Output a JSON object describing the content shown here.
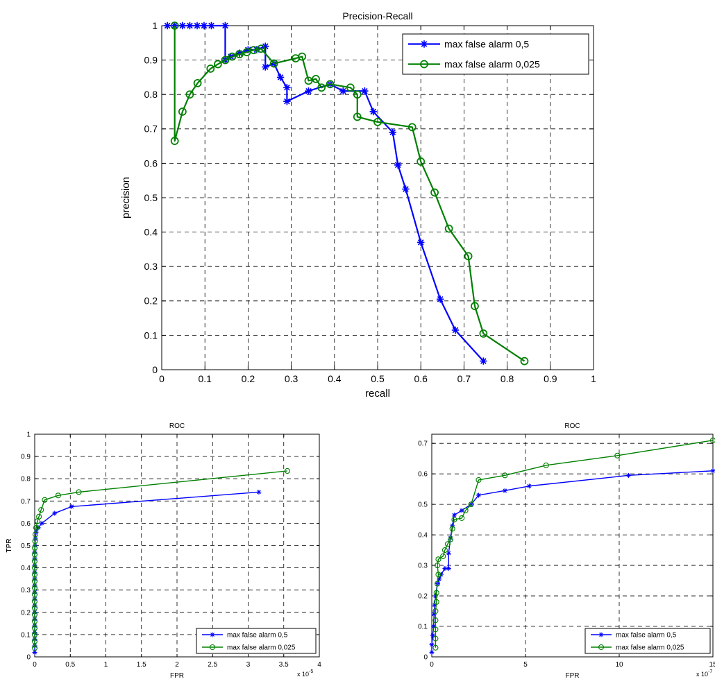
{
  "chart_data": [
    {
      "type": "line",
      "title": "Precision-Recall",
      "xlabel": "recall",
      "ylabel": "precision",
      "xlim": [
        0,
        1
      ],
      "ylim": [
        0,
        1
      ],
      "xticks": [
        "0",
        "0.1",
        "0.2",
        "0.3",
        "0.4",
        "0.5",
        "0.6",
        "0.7",
        "0.8",
        "0.9",
        "1"
      ],
      "yticks": [
        "0",
        "0.1",
        "0.2",
        "0.3",
        "0.4",
        "0.5",
        "0.6",
        "0.7",
        "0.8",
        "0.9",
        "1"
      ],
      "grid": true,
      "legend_position": "top-right",
      "series": [
        {
          "name": "max false alarm 0,5",
          "color": "#0000ff",
          "marker": "star",
          "points": [
            [
              0.013,
              1.0
            ],
            [
              0.03,
              1.0
            ],
            [
              0.048,
              1.0
            ],
            [
              0.065,
              1.0
            ],
            [
              0.082,
              1.0
            ],
            [
              0.098,
              1.0
            ],
            [
              0.115,
              1.0
            ],
            [
              0.147,
              1.0
            ],
            [
              0.147,
              0.9
            ],
            [
              0.16,
              0.91
            ],
            [
              0.18,
              0.92
            ],
            [
              0.2,
              0.93
            ],
            [
              0.22,
              0.93
            ],
            [
              0.24,
              0.94
            ],
            [
              0.24,
              0.88
            ],
            [
              0.26,
              0.89
            ],
            [
              0.275,
              0.85
            ],
            [
              0.29,
              0.82
            ],
            [
              0.29,
              0.78
            ],
            [
              0.34,
              0.81
            ],
            [
              0.39,
              0.83
            ],
            [
              0.42,
              0.81
            ],
            [
              0.47,
              0.81
            ],
            [
              0.49,
              0.75
            ],
            [
              0.535,
              0.69
            ],
            [
              0.547,
              0.595
            ],
            [
              0.565,
              0.525
            ],
            [
              0.6,
              0.37
            ],
            [
              0.645,
              0.205
            ],
            [
              0.68,
              0.115
            ],
            [
              0.745,
              0.025
            ]
          ]
        },
        {
          "name": "max false alarm 0,025",
          "color": "#008000",
          "marker": "circle",
          "points": [
            [
              0.03,
              1.0
            ],
            [
              0.03,
              0.665
            ],
            [
              0.048,
              0.75
            ],
            [
              0.065,
              0.8
            ],
            [
              0.083,
              0.833
            ],
            [
              0.113,
              0.875
            ],
            [
              0.13,
              0.888
            ],
            [
              0.147,
              0.9
            ],
            [
              0.163,
              0.91
            ],
            [
              0.18,
              0.917
            ],
            [
              0.197,
              0.923
            ],
            [
              0.213,
              0.929
            ],
            [
              0.23,
              0.933
            ],
            [
              0.26,
              0.89
            ],
            [
              0.31,
              0.905
            ],
            [
              0.325,
              0.91
            ],
            [
              0.34,
              0.84
            ],
            [
              0.357,
              0.845
            ],
            [
              0.37,
              0.82
            ],
            [
              0.39,
              0.83
            ],
            [
              0.437,
              0.82
            ],
            [
              0.453,
              0.8
            ],
            [
              0.453,
              0.735
            ],
            [
              0.5,
              0.72
            ],
            [
              0.58,
              0.705
            ],
            [
              0.6,
              0.605
            ],
            [
              0.632,
              0.515
            ],
            [
              0.665,
              0.41
            ],
            [
              0.71,
              0.33
            ],
            [
              0.725,
              0.185
            ],
            [
              0.745,
              0.105
            ],
            [
              0.84,
              0.025
            ]
          ]
        }
      ]
    },
    {
      "type": "line",
      "title": "ROC",
      "xlabel": "FPR",
      "ylabel": "TPR",
      "xlim": [
        0,
        4
      ],
      "ylim": [
        0,
        1
      ],
      "xticks": [
        "0",
        "0.5",
        "1",
        "1.5",
        "2",
        "2.5",
        "3",
        "3.5",
        "4"
      ],
      "yticks": [
        "0",
        "0.1",
        "0.2",
        "0.3",
        "0.4",
        "0.5",
        "0.6",
        "0.7",
        "0.8",
        "0.9",
        "1"
      ],
      "x_multiplier_base": "x 10",
      "x_multiplier_exp": "-5",
      "grid": true,
      "legend_position": "bottom-right",
      "series": [
        {
          "name": "max false alarm 0,5",
          "color": "#0000ff",
          "marker": "star",
          "points": [
            [
              0,
              0.02
            ],
            [
              0,
              0.05
            ],
            [
              0,
              0.08
            ],
            [
              0,
              0.11
            ],
            [
              0,
              0.14
            ],
            [
              0,
              0.17
            ],
            [
              0,
              0.2
            ],
            [
              0,
              0.23
            ],
            [
              0,
              0.26
            ],
            [
              0,
              0.29
            ],
            [
              0,
              0.32
            ],
            [
              0,
              0.35
            ],
            [
              0,
              0.38
            ],
            [
              0,
              0.41
            ],
            [
              0,
              0.44
            ],
            [
              0,
              0.47
            ],
            [
              0.005,
              0.5
            ],
            [
              0.01,
              0.53
            ],
            [
              0.02,
              0.56
            ],
            [
              0.05,
              0.58
            ],
            [
              0.1,
              0.6
            ],
            [
              0.28,
              0.645
            ],
            [
              0.52,
              0.675
            ],
            [
              3.15,
              0.74
            ]
          ]
        },
        {
          "name": "max false alarm 0,025",
          "color": "#008000",
          "marker": "circle",
          "points": [
            [
              0,
              0.04
            ],
            [
              0,
              0.07
            ],
            [
              0,
              0.1
            ],
            [
              0,
              0.13
            ],
            [
              0,
              0.16
            ],
            [
              0,
              0.19
            ],
            [
              0,
              0.22
            ],
            [
              0,
              0.25
            ],
            [
              0,
              0.28
            ],
            [
              0,
              0.31
            ],
            [
              0,
              0.34
            ],
            [
              0,
              0.37
            ],
            [
              0,
              0.4
            ],
            [
              0,
              0.43
            ],
            [
              0,
              0.46
            ],
            [
              0,
              0.49
            ],
            [
              0.005,
              0.52
            ],
            [
              0.01,
              0.55
            ],
            [
              0.02,
              0.58
            ],
            [
              0.04,
              0.61
            ],
            [
              0.06,
              0.63
            ],
            [
              0.09,
              0.66
            ],
            [
              0.14,
              0.705
            ],
            [
              0.33,
              0.725
            ],
            [
              0.62,
              0.74
            ],
            [
              3.55,
              0.835
            ]
          ]
        }
      ]
    },
    {
      "type": "line",
      "title": "ROC",
      "xlabel": "FPR",
      "ylabel": "TPR",
      "xlim": [
        0,
        15
      ],
      "ylim": [
        0,
        0.73
      ],
      "xticks": [
        "0",
        "5",
        "10",
        "15"
      ],
      "yticks": [
        "0",
        "0.1",
        "0.2",
        "0.3",
        "0.4",
        "0.5",
        "0.6",
        "0.7"
      ],
      "x_multiplier_base": "x 10",
      "x_multiplier_exp": "-7",
      "grid": true,
      "legend_position": "bottom-right",
      "series": [
        {
          "name": "max false alarm 0,5",
          "color": "#0000ff",
          "marker": "star",
          "points": [
            [
              0,
              0.015
            ],
            [
              0,
              0.04
            ],
            [
              0.05,
              0.07
            ],
            [
              0.1,
              0.1
            ],
            [
              0.12,
              0.14
            ],
            [
              0.15,
              0.17
            ],
            [
              0.2,
              0.2
            ],
            [
              0.3,
              0.24
            ],
            [
              0.4,
              0.255
            ],
            [
              0.5,
              0.27
            ],
            [
              0.7,
              0.29
            ],
            [
              0.9,
              0.29
            ],
            [
              0.9,
              0.34
            ],
            [
              1.0,
              0.39
            ],
            [
              1.1,
              0.43
            ],
            [
              1.2,
              0.465
            ],
            [
              1.6,
              0.48
            ],
            [
              2.1,
              0.5
            ],
            [
              2.5,
              0.53
            ],
            [
              3.9,
              0.545
            ],
            [
              5.2,
              0.56
            ],
            [
              10.5,
              0.595
            ],
            [
              15.0,
              0.61
            ]
          ]
        },
        {
          "name": "max false alarm 0,025",
          "color": "#008000",
          "marker": "circle",
          "points": [
            [
              0.2,
              0.03
            ],
            [
              0.2,
              0.06
            ],
            [
              0.2,
              0.09
            ],
            [
              0.2,
              0.12
            ],
            [
              0.2,
              0.15
            ],
            [
              0.25,
              0.18
            ],
            [
              0.25,
              0.21
            ],
            [
              0.3,
              0.24
            ],
            [
              0.35,
              0.27
            ],
            [
              0.3,
              0.3
            ],
            [
              0.35,
              0.32
            ],
            [
              0.6,
              0.33
            ],
            [
              0.7,
              0.35
            ],
            [
              0.85,
              0.37
            ],
            [
              1.0,
              0.385
            ],
            [
              1.1,
              0.42
            ],
            [
              1.2,
              0.45
            ],
            [
              1.6,
              0.455
            ],
            [
              1.8,
              0.48
            ],
            [
              2.1,
              0.5
            ],
            [
              2.5,
              0.58
            ],
            [
              3.9,
              0.595
            ],
            [
              6.1,
              0.628
            ],
            [
              9.9,
              0.66
            ],
            [
              15.0,
              0.71
            ]
          ]
        }
      ]
    }
  ]
}
